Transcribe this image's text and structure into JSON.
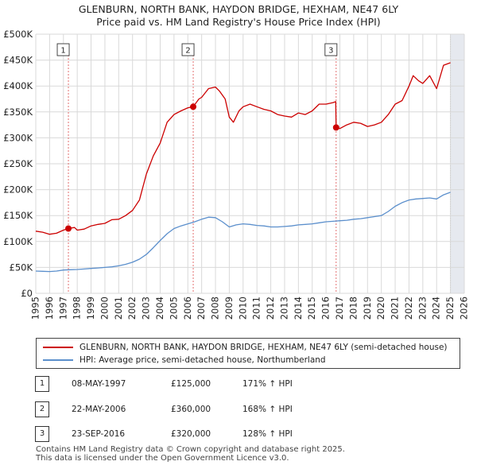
{
  "title_line1": "GLENBURN, NORTH BANK, HAYDON BRIDGE, HEXHAM, NE47 6LY",
  "title_line2": "Price paid vs. HM Land Registry's House Price Index (HPI)",
  "legend": [
    {
      "label": "GLENBURN, NORTH BANK, HAYDON BRIDGE, HEXHAM, NE47 6LY (semi-detached house)",
      "color": "#cc0000"
    },
    {
      "label": "HPI: Average price, semi-detached house, Northumberland",
      "color": "#5b8fcc"
    }
  ],
  "transactions": [
    {
      "num": "1",
      "date": "08-MAY-1997",
      "price": "£125,000",
      "hpi": "171% ↑ HPI"
    },
    {
      "num": "2",
      "date": "22-MAY-2006",
      "price": "£360,000",
      "hpi": "168% ↑ HPI"
    },
    {
      "num": "3",
      "date": "23-SEP-2016",
      "price": "£320,000",
      "hpi": "128% ↑ HPI"
    }
  ],
  "footer_line1": "Contains HM Land Registry data © Crown copyright and database right 2025.",
  "footer_line2": "This data is licensed under the Open Government Licence v3.0.",
  "chart_data": {
    "type": "line",
    "xlim": [
      1995,
      2026
    ],
    "ylim": [
      0,
      500000
    ],
    "x_ticks": [
      1995,
      1996,
      1997,
      1998,
      1999,
      2000,
      2001,
      2002,
      2003,
      2004,
      2005,
      2006,
      2007,
      2008,
      2009,
      2010,
      2011,
      2012,
      2013,
      2014,
      2015,
      2016,
      2017,
      2018,
      2019,
      2020,
      2021,
      2022,
      2023,
      2024,
      2025,
      2026
    ],
    "y_ticks": [
      {
        "value": 0,
        "label": "£0"
      },
      {
        "value": 50000,
        "label": "£50K"
      },
      {
        "value": 100000,
        "label": "£100K"
      },
      {
        "value": 150000,
        "label": "£150K"
      },
      {
        "value": 200000,
        "label": "£200K"
      },
      {
        "value": 250000,
        "label": "£250K"
      },
      {
        "value": 300000,
        "label": "£300K"
      },
      {
        "value": 350000,
        "label": "£350K"
      },
      {
        "value": 400000,
        "label": "£400K"
      },
      {
        "value": 450000,
        "label": "£450K"
      },
      {
        "value": 500000,
        "label": "£500K"
      }
    ],
    "grid": true,
    "future_shade_from": 2025.0,
    "sales": [
      {
        "label": "1",
        "x": 1997.36,
        "y": 125000
      },
      {
        "label": "2",
        "x": 2006.39,
        "y": 360000
      },
      {
        "label": "3",
        "x": 2016.73,
        "y": 320000
      }
    ],
    "series": [
      {
        "name": "GLENBURN, NORTH BANK, HAYDON BRIDGE, HEXHAM, NE47 6LY (semi-detached house)",
        "color": "#cc0000",
        "x": [
          1995,
          1995.5,
          1996,
          1996.5,
          1997,
          1997.36,
          1997.8,
          1998,
          1998.5,
          1999,
          1999.5,
          2000,
          2000.5,
          2001,
          2001.5,
          2002,
          2002.5,
          2003,
          2003.5,
          2004,
          2004.5,
          2005,
          2005.5,
          2006,
          2006.39,
          2006.8,
          2007,
          2007.5,
          2008,
          2008.3,
          2008.7,
          2009,
          2009.3,
          2009.7,
          2010,
          2010.5,
          2011,
          2011.5,
          2012,
          2012.5,
          2013,
          2013.5,
          2014,
          2014.5,
          2015,
          2015.5,
          2016,
          2016.5,
          2016.7,
          2016.73,
          2017,
          2017.5,
          2018,
          2018.5,
          2019,
          2019.5,
          2020,
          2020.5,
          2021,
          2021.5,
          2022,
          2022.3,
          2022.7,
          2023,
          2023.5,
          2024,
          2024.5,
          2025
        ],
        "y": [
          120000,
          118000,
          114000,
          116000,
          122000,
          125000,
          127000,
          122000,
          124000,
          130000,
          133000,
          135000,
          142000,
          143000,
          150000,
          160000,
          180000,
          230000,
          265000,
          290000,
          330000,
          345000,
          352000,
          358000,
          360000,
          375000,
          378000,
          395000,
          398000,
          390000,
          375000,
          340000,
          330000,
          352000,
          360000,
          365000,
          360000,
          355000,
          352000,
          345000,
          342000,
          340000,
          348000,
          345000,
          352000,
          365000,
          365000,
          368000,
          370000,
          320000,
          318000,
          325000,
          330000,
          328000,
          322000,
          325000,
          330000,
          345000,
          365000,
          372000,
          400000,
          420000,
          410000,
          405000,
          420000,
          395000,
          440000,
          445000
        ]
      },
      {
        "name": "HPI: Average price, semi-detached house, Northumberland",
        "color": "#5b8fcc",
        "x": [
          1995,
          1995.5,
          1996,
          1996.5,
          1997,
          1997.5,
          1998,
          1998.5,
          1999,
          1999.5,
          2000,
          2000.5,
          2001,
          2001.5,
          2002,
          2002.5,
          2003,
          2003.5,
          2004,
          2004.5,
          2005,
          2005.5,
          2006,
          2006.5,
          2007,
          2007.5,
          2008,
          2008.5,
          2009,
          2009.5,
          2010,
          2010.5,
          2011,
          2011.5,
          2012,
          2012.5,
          2013,
          2013.5,
          2014,
          2014.5,
          2015,
          2015.5,
          2016,
          2016.5,
          2017,
          2017.5,
          2018,
          2018.5,
          2019,
          2019.5,
          2020,
          2020.5,
          2021,
          2021.5,
          2022,
          2022.5,
          2023,
          2023.5,
          2024,
          2024.5,
          2025
        ],
        "y": [
          43000,
          42500,
          42000,
          43000,
          45000,
          45500,
          46000,
          47000,
          48000,
          49000,
          50000,
          51000,
          53000,
          56000,
          60000,
          66000,
          75000,
          88000,
          102000,
          115000,
          125000,
          130000,
          134000,
          138000,
          143000,
          147000,
          146000,
          138000,
          128000,
          132000,
          134000,
          133000,
          131000,
          130000,
          128000,
          128000,
          129000,
          130000,
          132000,
          133000,
          134000,
          136000,
          138000,
          139000,
          140000,
          141000,
          143000,
          144000,
          146000,
          148000,
          150000,
          158000,
          168000,
          175000,
          180000,
          182000,
          183000,
          184000,
          182000,
          190000,
          195000
        ]
      }
    ]
  }
}
